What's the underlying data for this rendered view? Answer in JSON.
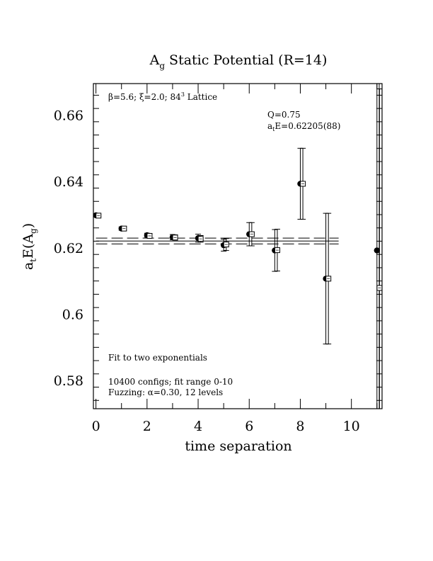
{
  "chart_data": {
    "type": "scatter",
    "title_main": "A",
    "title_sub": "g",
    "title_rest": " Static Potential (R=14)",
    "xlabel": "time separation",
    "ylabel_parts": [
      "a",
      "t",
      "E(A",
      "g",
      ")"
    ],
    "xlim": [
      -0.1,
      11.2
    ],
    "ylim": [
      0.5715,
      0.6695
    ],
    "x_ticks": [
      0,
      2,
      4,
      6,
      8,
      10
    ],
    "y_ticks": [
      0.58,
      0.6,
      0.62,
      0.64,
      0.66
    ],
    "x_tick_labels": [
      "0",
      "2",
      "4",
      "6",
      "8",
      "10"
    ],
    "y_tick_labels": [
      "0.58",
      "0.6",
      "0.62",
      "0.64",
      "0.66"
    ],
    "annotations": {
      "lattice_beta": "β=5.6; ",
      "lattice_xi": "ξ=2.0; 84",
      "lattice_sup": "3",
      "lattice_tail": " Lattice",
      "q_value": "Q=0.75",
      "energy_a": "a",
      "energy_sub": "t",
      "energy_rest": "E=0.62205(88)",
      "fit_method": "Fit to two exponentials",
      "configs": "10400 configs; fit range 0-10",
      "fuzzing": "Fuzzing: α=0.30, 12 levels"
    },
    "fit": {
      "value": 0.62205,
      "error": 0.00088,
      "x_range": [
        0,
        9.5
      ]
    },
    "series": [
      {
        "marker": "filled-circle",
        "x": [
          0,
          1,
          2,
          3,
          4,
          5,
          6,
          7,
          8,
          9,
          11
        ],
        "y": [
          0.6298,
          0.6258,
          0.6238,
          0.6232,
          0.6229,
          0.6208,
          0.6241,
          0.6192,
          0.6393,
          0.6107,
          0.6192
        ],
        "err": [
          0.0003,
          0.0005,
          0.0006,
          0.0008,
          0.0012,
          0.0018,
          0.0035,
          0.0063,
          0.0107,
          0.0197,
          0.06
        ]
      },
      {
        "marker": "open-square",
        "x": [
          0.1,
          1.1,
          2.1,
          3.1,
          4.1,
          5.1,
          6.1,
          7.1,
          8.1,
          9.1,
          11.1
        ],
        "y": [
          0.6297,
          0.6258,
          0.6236,
          0.6231,
          0.6227,
          0.621,
          0.6241,
          0.6193,
          0.6393,
          0.6107,
          0.6079
        ],
        "err": [
          0.0003,
          0.0005,
          0.0006,
          0.0008,
          0.001,
          0.0018,
          0.0035,
          0.0063,
          0.0107,
          0.0197,
          0.06
        ]
      }
    ]
  }
}
